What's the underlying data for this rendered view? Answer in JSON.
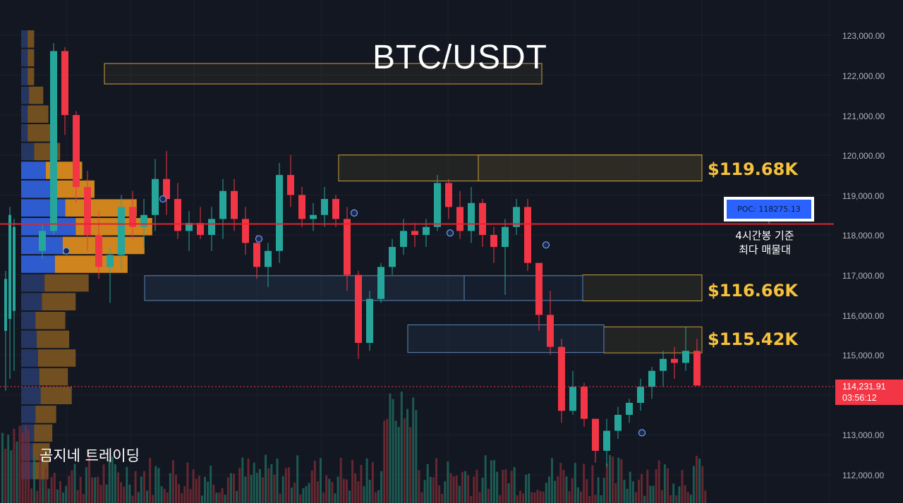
{
  "chart_data": {
    "type": "candlestick",
    "title": "BTC/USDT",
    "y_axis": {
      "range": [
        111300,
        123800
      ],
      "ticks": [
        "123,000.00",
        "122,000.00",
        "121,000.00",
        "120,000.00",
        "119,000.00",
        "118,000.00",
        "117,000.00",
        "116,000.00",
        "115,000.00",
        "113,000.00",
        "112,000.00"
      ]
    },
    "levels": [
      {
        "label": "$119.68K",
        "zone": [
          119350,
          120000
        ]
      },
      {
        "label": "$116.66K",
        "zone": [
          116350,
          117000
        ]
      },
      {
        "label": "$115.42K",
        "zone": [
          115050,
          115700
        ]
      }
    ],
    "poc": {
      "label": "POC: 118275.13",
      "value": 118275.13,
      "note": [
        "4시간봉 기준",
        "최다 매물대"
      ]
    },
    "last_price": {
      "value": "114,231.91",
      "countdown": "03:56:12"
    },
    "candles_ohlc": [
      [
        117600,
        118300,
        117400,
        118100
      ],
      [
        118100,
        122800,
        118000,
        122600
      ],
      [
        122600,
        122700,
        120500,
        121000
      ],
      [
        121000,
        121100,
        118800,
        119200
      ],
      [
        119200,
        119600,
        117600,
        118000
      ],
      [
        118000,
        118600,
        116900,
        117200
      ],
      [
        117200,
        117700,
        116300,
        117500
      ],
      [
        117500,
        119000,
        117100,
        118700
      ],
      [
        118700,
        119100,
        117900,
        118200
      ],
      [
        118200,
        118900,
        117700,
        118500
      ],
      [
        118500,
        119900,
        118100,
        119400
      ],
      [
        119400,
        120100,
        118500,
        118900
      ],
      [
        118900,
        119300,
        117900,
        118100
      ],
      [
        118100,
        118600,
        117600,
        118300
      ],
      [
        118300,
        118700,
        117900,
        118000
      ],
      [
        118000,
        118700,
        117600,
        118400
      ],
      [
        118400,
        119400,
        117900,
        119100
      ],
      [
        119100,
        119400,
        118100,
        118400
      ],
      [
        118400,
        118700,
        117500,
        117800
      ],
      [
        117800,
        118000,
        116900,
        117200
      ],
      [
        117200,
        117800,
        116700,
        117600
      ],
      [
        117600,
        119800,
        117300,
        119500
      ],
      [
        119500,
        120000,
        118700,
        119000
      ],
      [
        119000,
        119200,
        118200,
        118400
      ],
      [
        118400,
        118800,
        118100,
        118500
      ],
      [
        118500,
        119200,
        118200,
        118900
      ],
      [
        118900,
        119000,
        118200,
        118400
      ],
      [
        118400,
        118700,
        116600,
        117000
      ],
      [
        117000,
        117100,
        114900,
        115300
      ],
      [
        115300,
        116600,
        115100,
        116400
      ],
      [
        116400,
        117300,
        116300,
        117200
      ],
      [
        117200,
        117900,
        117000,
        117700
      ],
      [
        117700,
        118400,
        117500,
        118100
      ],
      [
        118100,
        118300,
        117700,
        118000
      ],
      [
        118000,
        118400,
        117700,
        118200
      ],
      [
        118200,
        119500,
        118100,
        119300
      ],
      [
        119300,
        119400,
        118400,
        118700
      ],
      [
        118700,
        119100,
        117900,
        118100
      ],
      [
        118100,
        119200,
        117800,
        118800
      ],
      [
        118800,
        118900,
        117700,
        118000
      ],
      [
        118000,
        118200,
        117300,
        117700
      ],
      [
        117700,
        118400,
        116500,
        118200
      ],
      [
        118200,
        118900,
        118000,
        118700
      ],
      [
        118700,
        118900,
        117100,
        117300
      ],
      [
        117300,
        117300,
        115600,
        116000
      ],
      [
        116000,
        116600,
        115000,
        115200
      ],
      [
        115200,
        115400,
        113300,
        113600
      ],
      [
        113600,
        114600,
        113500,
        114200
      ],
      [
        114200,
        114300,
        113200,
        113400
      ],
      [
        113400,
        113400,
        112300,
        112600
      ],
      [
        112600,
        113400,
        112200,
        113100
      ],
      [
        113100,
        113700,
        112900,
        113500
      ],
      [
        113500,
        113900,
        113300,
        113800
      ],
      [
        113800,
        114400,
        113600,
        114200
      ],
      [
        114200,
        114700,
        113900,
        114600
      ],
      [
        114600,
        115100,
        114200,
        114900
      ],
      [
        114900,
        115200,
        114400,
        114800
      ],
      [
        114800,
        115700,
        114600,
        115100
      ],
      [
        115100,
        115400,
        114300,
        114231.91
      ]
    ],
    "volume_profile": [
      [
        0.1,
        0.1
      ],
      [
        0.1,
        0.1
      ],
      [
        0.1,
        0.1
      ],
      [
        0.12,
        0.22
      ],
      [
        0.1,
        0.32
      ],
      [
        0.1,
        0.4
      ],
      [
        0.2,
        0.4
      ],
      [
        0.38,
        0.56
      ],
      [
        0.45,
        0.68
      ],
      [
        0.68,
        1.1
      ],
      [
        0.84,
        1.18
      ],
      [
        0.64,
        1.26
      ],
      [
        0.52,
        1.12
      ],
      [
        0.36,
        0.68
      ],
      [
        0.32,
        0.52
      ],
      [
        0.22,
        0.46
      ],
      [
        0.24,
        0.5
      ],
      [
        0.26,
        0.58
      ],
      [
        0.28,
        0.44
      ],
      [
        0.3,
        0.48
      ],
      [
        0.22,
        0.32
      ],
      [
        0.2,
        0.28
      ],
      [
        0.18,
        0.26
      ],
      [
        0.18,
        0.24
      ]
    ]
  }
}
